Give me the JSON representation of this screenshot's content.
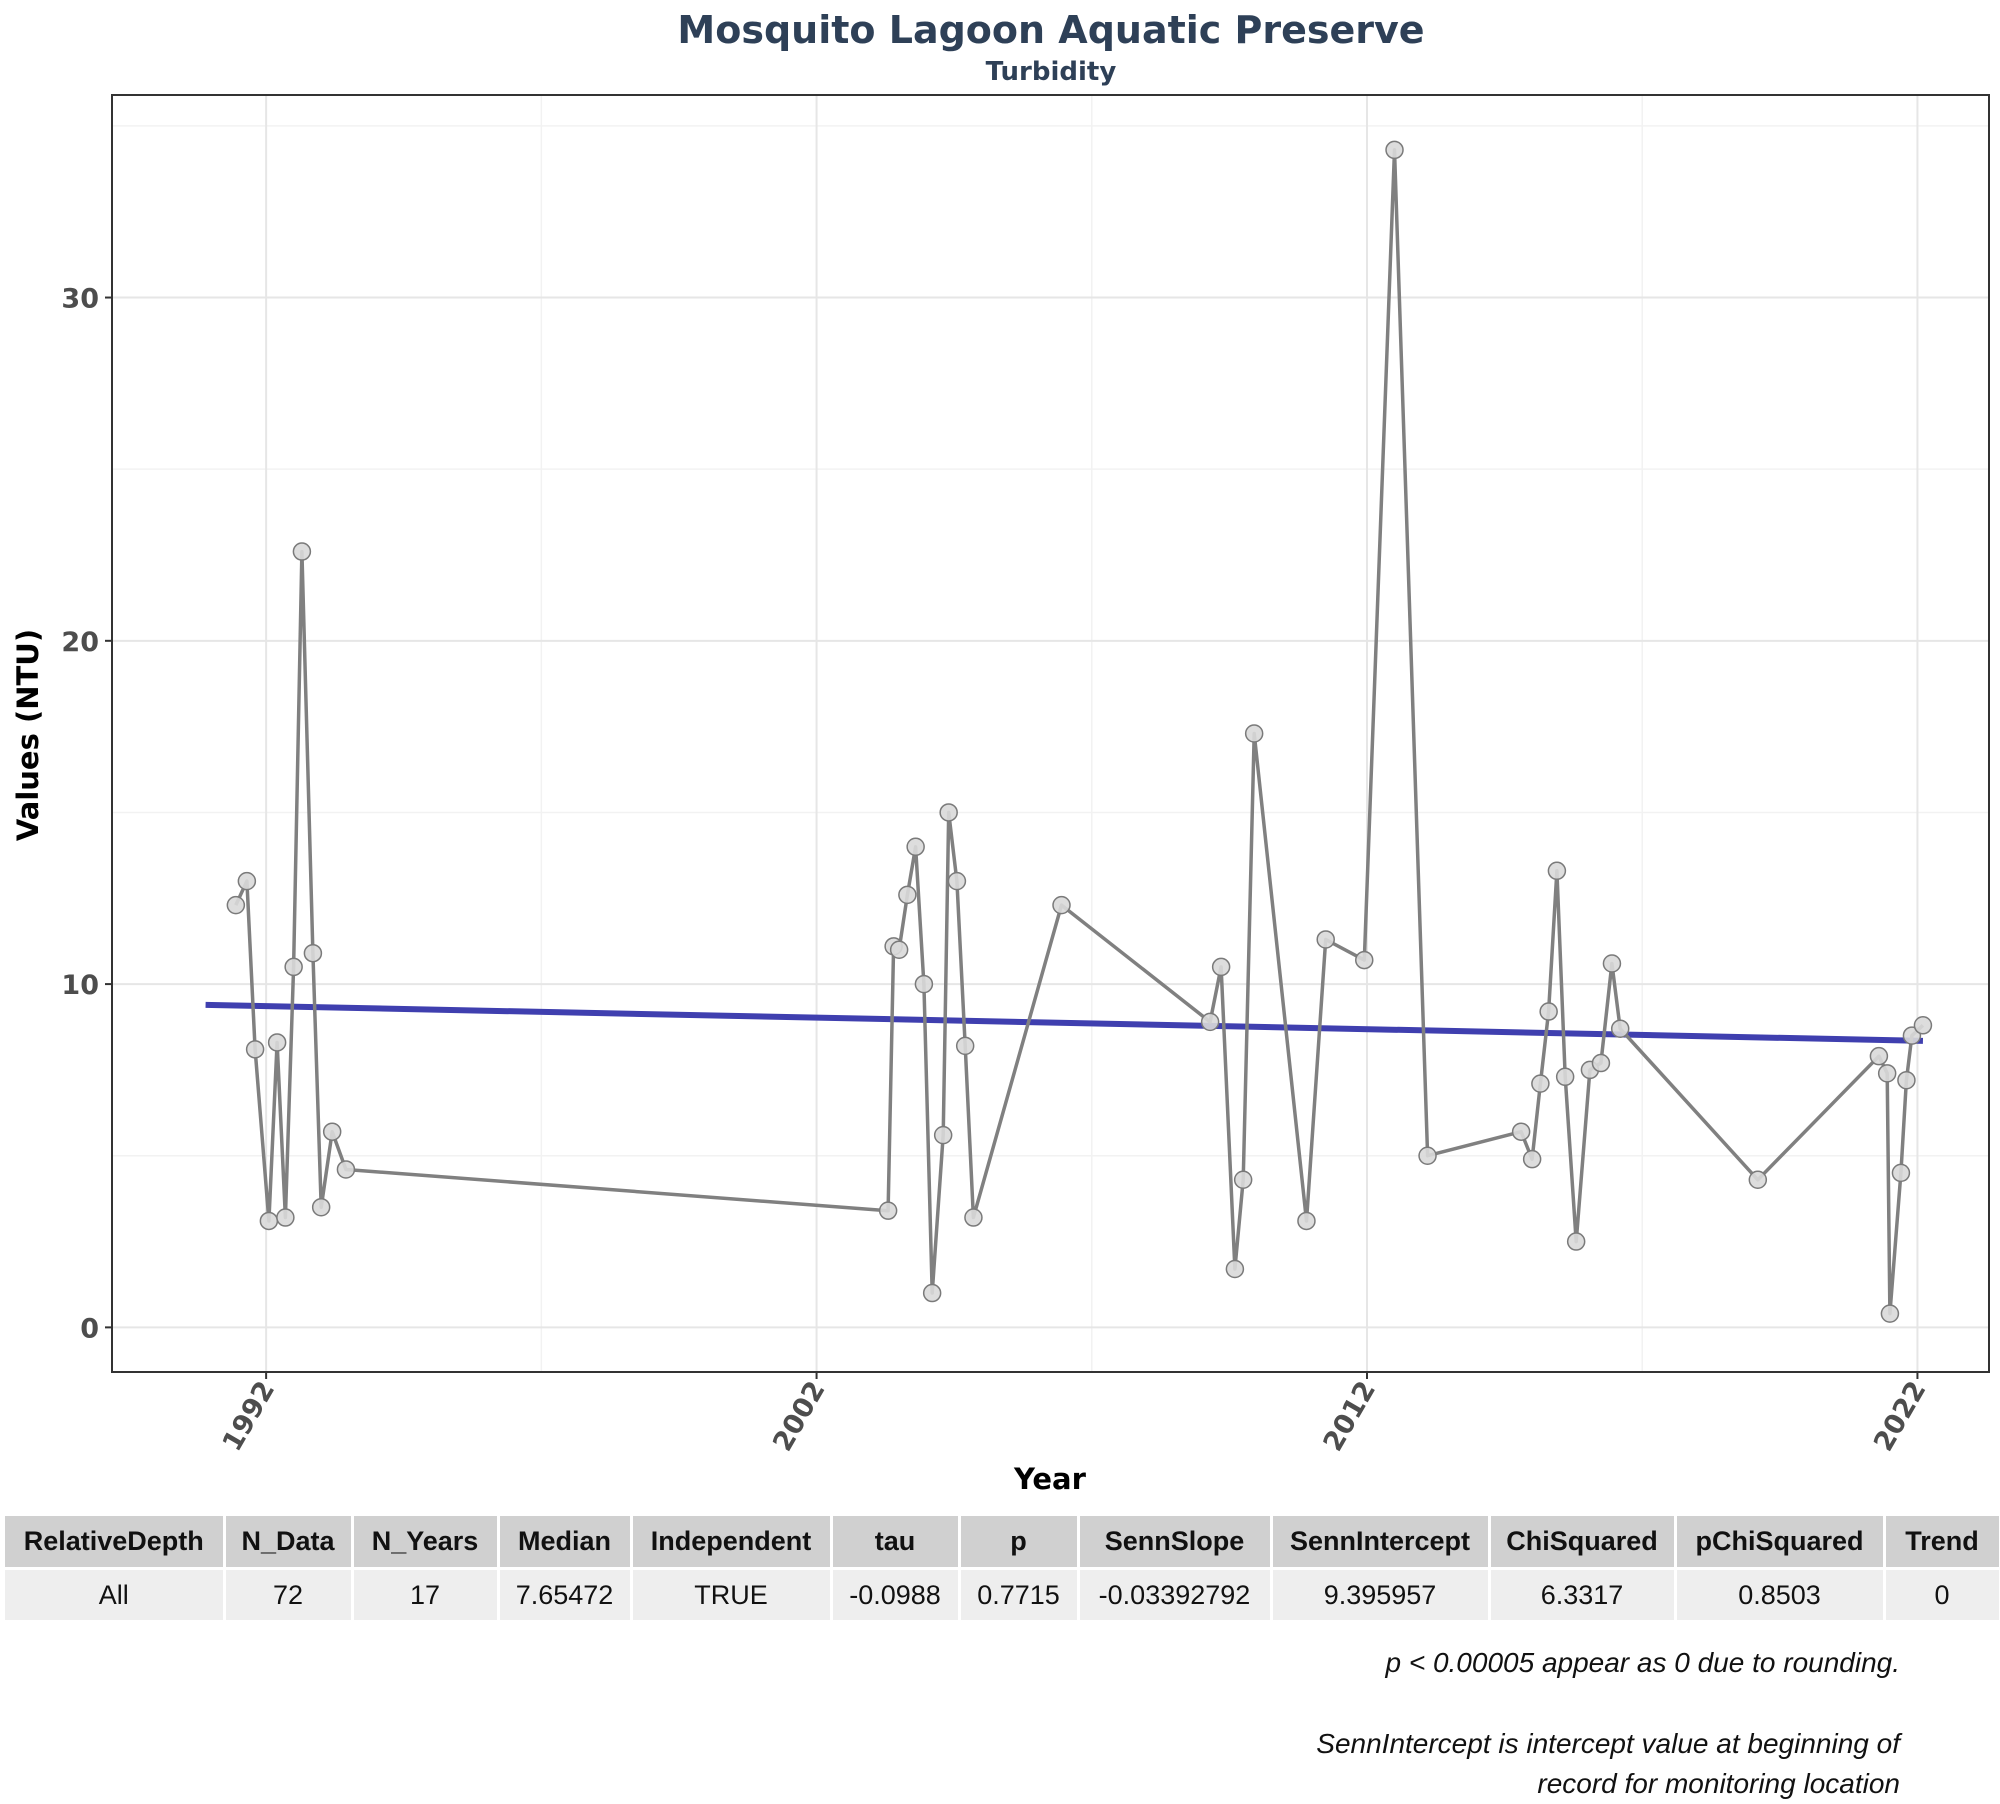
{
  "chart_data": {
    "type": "line",
    "title": "Mosquito Lagoon Aquatic Preserve",
    "subtitle": "Turbidity",
    "xlabel": "Year",
    "ylabel": "Values (NTU)",
    "xlim": [
      1989.2,
      2023.3
    ],
    "ylim": [
      -1.3,
      35.9
    ],
    "x_ticks": [
      1992,
      2002,
      2012,
      2022
    ],
    "y_ticks": [
      0,
      10,
      20,
      30
    ],
    "grid": true,
    "colors": {
      "series": "#808080",
      "trend": "#3f3faf",
      "point_fill": "#d9d9d9",
      "title": "#2e4057"
    },
    "series": [
      {
        "points": [
          [
            1991.45,
            12.3
          ],
          [
            1991.65,
            13.0
          ],
          [
            1991.8,
            8.1
          ],
          [
            1992.05,
            3.1
          ],
          [
            1992.2,
            8.3
          ],
          [
            1992.35,
            3.2
          ],
          [
            1992.5,
            10.5
          ],
          [
            1992.65,
            22.6
          ],
          [
            1992.85,
            10.9
          ],
          [
            1993.0,
            3.5
          ],
          [
            1993.2,
            5.7
          ],
          [
            1993.45,
            4.6
          ],
          [
            2003.3,
            3.4
          ],
          [
            2003.4,
            11.1
          ],
          [
            2003.5,
            11.0
          ],
          [
            2003.65,
            12.6
          ],
          [
            2003.8,
            14.0
          ],
          [
            2003.95,
            10.0
          ],
          [
            2004.1,
            1.0
          ],
          [
            2004.3,
            5.6
          ],
          [
            2004.4,
            15.0
          ],
          [
            2004.55,
            13.0
          ],
          [
            2004.7,
            8.2
          ],
          [
            2004.85,
            3.2
          ],
          [
            2006.45,
            12.3
          ],
          [
            2009.15,
            8.9
          ],
          [
            2009.35,
            10.5
          ],
          [
            2009.6,
            1.7
          ],
          [
            2009.75,
            4.3
          ],
          [
            2009.95,
            17.3
          ],
          [
            2010.9,
            3.1
          ],
          [
            2011.25,
            11.3
          ],
          [
            2011.95,
            10.7
          ],
          [
            2012.5,
            34.3
          ],
          [
            2013.1,
            5.0
          ],
          [
            2014.8,
            5.7
          ],
          [
            2015.0,
            4.9
          ],
          [
            2015.15,
            7.1
          ],
          [
            2015.3,
            9.2
          ],
          [
            2015.45,
            13.3
          ],
          [
            2015.6,
            7.3
          ],
          [
            2015.8,
            2.5
          ],
          [
            2016.05,
            7.5
          ],
          [
            2016.25,
            7.7
          ],
          [
            2016.45,
            10.6
          ],
          [
            2016.6,
            8.7
          ],
          [
            2019.1,
            4.3
          ],
          [
            2021.3,
            7.9
          ],
          [
            2021.45,
            7.4
          ],
          [
            2021.5,
            0.4
          ],
          [
            2021.7,
            4.5
          ],
          [
            2021.8,
            7.2
          ],
          [
            2021.9,
            8.5
          ],
          [
            2022.1,
            8.8
          ]
        ]
      }
    ],
    "trend_line": {
      "x": [
        1990.9,
        2022.1
      ],
      "y": [
        9.395957,
        8.347
      ]
    }
  },
  "table": {
    "headers": [
      "RelativeDepth",
      "N_Data",
      "N_Years",
      "Median",
      "Independent",
      "tau",
      "p",
      "SennSlope",
      "SennIntercept",
      "ChiSquared",
      "pChiSquared",
      "Trend"
    ],
    "rows": [
      [
        "All",
        "72",
        "17",
        "7.65472",
        "TRUE",
        "-0.0988",
        "0.7715",
        "-0.03392792",
        "9.395957",
        "6.3317",
        "0.8503",
        "0"
      ]
    ]
  },
  "notes": {
    "rounding": "p < 0.00005 appear as 0 due to rounding.",
    "intercept_line1": "SennIntercept is intercept value at beginning of",
    "intercept_line2": "record for monitoring location"
  }
}
